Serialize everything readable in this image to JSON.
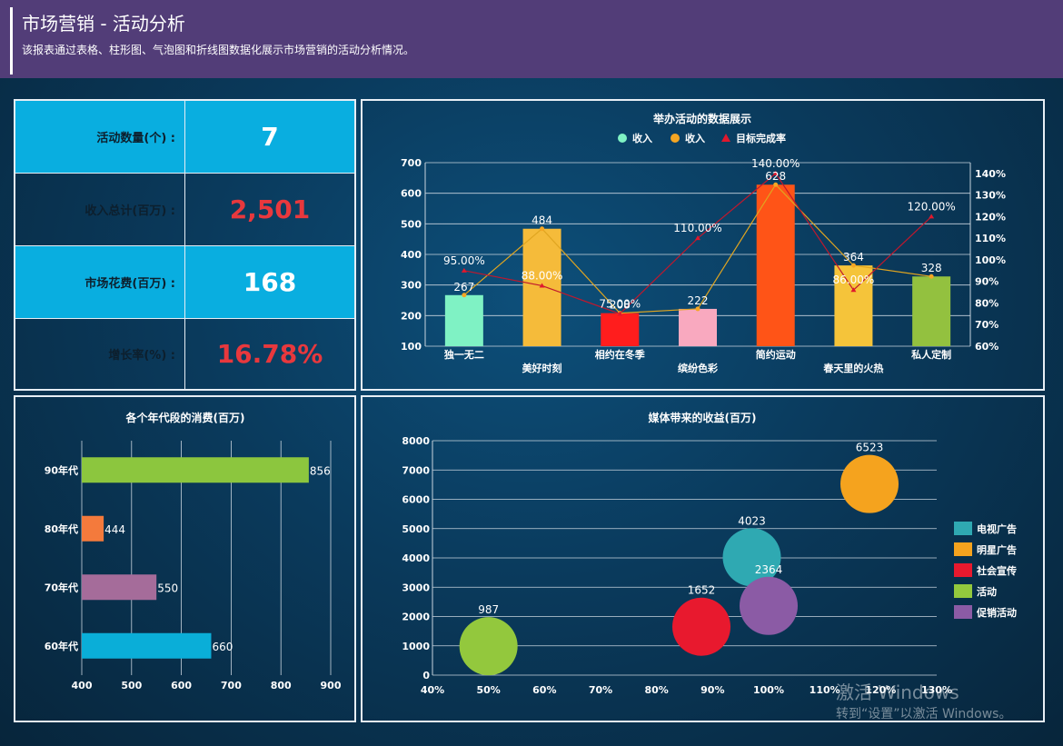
{
  "header": {
    "title": "市场营销 - 活动分析",
    "subtitle": "该报表通过表格、柱形图、气泡图和折线图数据化展示市场营销的活动分析情况。"
  },
  "kpis": [
    {
      "label": "活动数量(个) :",
      "value": "7",
      "color": "#ffffff"
    },
    {
      "label": "收入总计(百万) :",
      "value": "2,501",
      "color": "#e8383d"
    },
    {
      "label": "市场花费(百万) :",
      "value": "168",
      "color": "#ffffff"
    },
    {
      "label": "增长率(%) :",
      "value": "16.78%",
      "color": "#e8383d"
    }
  ],
  "activity_chart": {
    "chart_data": {
      "type": "bar",
      "title": "举办活动的数据展示",
      "legend": [
        "收入",
        "收入",
        "目标完成率"
      ],
      "legend_colors": [
        "#7ff2c4",
        "#f5a623",
        "#e0182d"
      ],
      "categories": [
        "独一无二",
        "美好时刻",
        "相约在冬季",
        "缤纷色彩",
        "简约运动",
        "春天里的火热",
        "私人定制"
      ],
      "values": [
        267,
        484,
        208,
        222,
        628,
        364,
        328
      ],
      "value_labels": [
        "267",
        "484",
        "208",
        "222",
        "628",
        "364",
        "328"
      ],
      "bar_colors": [
        "#7ff2c4",
        "#f5bb3a",
        "#ff1d1d",
        "#f9a9bf",
        "#ff5417",
        "#f5c43a",
        "#93c13f"
      ],
      "rate": [
        95,
        88,
        75,
        110,
        140,
        86,
        120
      ],
      "rate_labels": [
        "95.00%",
        "88.00%",
        "75.00%",
        "110.00%",
        "140.00%",
        "86.00%",
        "120.00%"
      ],
      "ylim": [
        100,
        700
      ],
      "y_ticks": [
        "100",
        "200",
        "300",
        "400",
        "500",
        "600",
        "700"
      ],
      "y2lim": [
        60,
        145
      ],
      "y2_ticks": [
        "60%",
        "70%",
        "80%",
        "90%",
        "100%",
        "110%",
        "120%",
        "130%",
        "140%"
      ]
    }
  },
  "age_chart": {
    "chart_data": {
      "type": "bar",
      "title": "各个年代段的消费(百万)",
      "categories": [
        "90年代",
        "80年代",
        "70年代",
        "60年代"
      ],
      "values": [
        856,
        444,
        550,
        660
      ],
      "value_labels": [
        "856",
        "444",
        "550",
        "660"
      ],
      "colors": [
        "#8cc63e",
        "#f47a3c",
        "#a56c9a",
        "#0aaed8"
      ],
      "xlim": [
        400,
        900
      ],
      "x_ticks": [
        "400",
        "500",
        "600",
        "700",
        "800",
        "900"
      ]
    }
  },
  "media_chart": {
    "chart_data": {
      "type": "scatter",
      "title": "媒体带来的收益(百万)",
      "series": [
        {
          "name": "电视广告",
          "x": 97,
          "y": 4023,
          "label": "4023",
          "color": "#2fa9b2"
        },
        {
          "name": "明星广告",
          "x": 118,
          "y": 6523,
          "label": "6523",
          "color": "#f5a31e"
        },
        {
          "name": "社会宣传",
          "x": 88,
          "y": 1652,
          "label": "1652",
          "color": "#e8192e"
        },
        {
          "name": "活动",
          "x": 50,
          "y": 987,
          "label": "987",
          "color": "#93c83d"
        },
        {
          "name": "促销活动",
          "x": 100,
          "y": 2364,
          "label": "2364",
          "color": "#8b5ba5"
        }
      ],
      "xlim": [
        40,
        130
      ],
      "x_ticks": [
        "40%",
        "50%",
        "60%",
        "70%",
        "80%",
        "90%",
        "100%",
        "110%",
        "120%",
        "130%"
      ],
      "ylim": [
        0,
        8000
      ],
      "y_ticks": [
        "0",
        "1000",
        "2000",
        "3000",
        "4000",
        "5000",
        "6000",
        "7000",
        "8000"
      ]
    }
  },
  "watermark": {
    "line1": "激活 Windows",
    "line2": "转到“设置”以激活 Windows。"
  }
}
